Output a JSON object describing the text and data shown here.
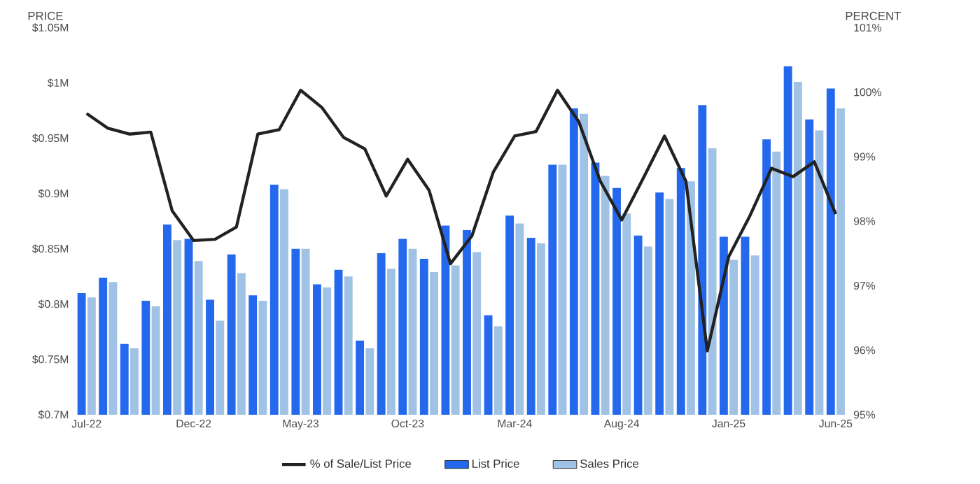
{
  "chart_data": {
    "type": "bar",
    "categories": [
      "Jul-22",
      null,
      null,
      null,
      null,
      "Dec-22",
      null,
      null,
      null,
      null,
      "May-23",
      null,
      null,
      null,
      null,
      "Oct-23",
      null,
      null,
      null,
      null,
      "Mar-24",
      null,
      null,
      null,
      null,
      "Aug-24",
      null,
      null,
      null,
      null,
      "Jan-25",
      null,
      null,
      null,
      null,
      "Jun-25"
    ],
    "series": [
      {
        "name": "% of Sale/List Price",
        "type": "line",
        "axis": "y2",
        "color": "#222222",
        "values": [
          99.67,
          99.44,
          99.35,
          99.38,
          98.16,
          97.7,
          97.72,
          97.91,
          99.35,
          99.42,
          100.03,
          99.76,
          99.3,
          99.12,
          98.39,
          98.96,
          98.48,
          97.34,
          97.77,
          98.76,
          99.32,
          99.39,
          100.03,
          99.54,
          98.62,
          98.02,
          98.66,
          99.32,
          98.62,
          95.99,
          97.45,
          98.09,
          98.82,
          98.69,
          98.92,
          98.11
        ]
      },
      {
        "name": "List Price",
        "color": "#2468ee",
        "values": [
          0.81,
          0.824,
          0.764,
          0.803,
          0.872,
          0.859,
          0.804,
          0.845,
          0.808,
          0.908,
          0.85,
          0.818,
          0.831,
          0.767,
          0.846,
          0.859,
          0.841,
          0.871,
          0.867,
          0.79,
          0.88,
          0.86,
          0.926,
          0.977,
          0.928,
          0.905,
          0.862,
          0.901,
          0.923,
          0.98,
          0.861,
          0.861,
          0.949,
          1.015,
          0.967,
          0.995
        ]
      },
      {
        "name": "Sales Price",
        "color": "#a0c2e4",
        "values": [
          0.806,
          0.82,
          0.76,
          0.798,
          0.858,
          0.839,
          0.785,
          0.828,
          0.803,
          0.904,
          0.85,
          0.815,
          0.825,
          0.76,
          0.832,
          0.85,
          0.829,
          0.835,
          0.847,
          0.78,
          0.873,
          0.855,
          0.926,
          0.972,
          0.916,
          0.882,
          0.852,
          0.895,
          0.911,
          0.941,
          0.84,
          0.844,
          0.938,
          1.001,
          0.957,
          0.977
        ]
      }
    ],
    "ylabel": "PRICE",
    "y2label": "PERCENT",
    "ylim": [
      0.7,
      1.05
    ],
    "yticks": [
      {
        "value": 0.7,
        "label": "$0.7M"
      },
      {
        "value": 0.75,
        "label": "$0.75M"
      },
      {
        "value": 0.8,
        "label": "$0.8M"
      },
      {
        "value": 0.85,
        "label": "$0.85M"
      },
      {
        "value": 0.9,
        "label": "$0.9M"
      },
      {
        "value": 0.95,
        "label": "$0.95M"
      },
      {
        "value": 1.0,
        "label": "$1M"
      },
      {
        "value": 1.05,
        "label": "$1.05M"
      }
    ],
    "y2lim": [
      95,
      101
    ],
    "y2ticks": [
      {
        "value": 95,
        "label": "95%"
      },
      {
        "value": 96,
        "label": "96%"
      },
      {
        "value": 97,
        "label": "97%"
      },
      {
        "value": 98,
        "label": "98%"
      },
      {
        "value": 99,
        "label": "99%"
      },
      {
        "value": 100,
        "label": "100%"
      },
      {
        "value": 101,
        "label": "101%"
      }
    ],
    "legend": "bottom",
    "grid": false,
    "marker": "none",
    "line_style": "solid"
  }
}
